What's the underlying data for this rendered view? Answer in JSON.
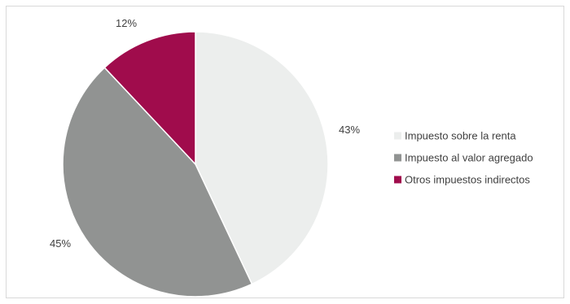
{
  "chart_data": {
    "type": "pie",
    "categories": [
      "Impuesto sobre la renta",
      "Impuesto al valor agregado",
      "Otros impuestos indirectos"
    ],
    "values": [
      43,
      45,
      12
    ],
    "labels": [
      "43%",
      "45%",
      "12%"
    ],
    "colors": [
      "#eceeed",
      "#919392",
      "#a00c4c"
    ],
    "start_angle_deg": 0,
    "direction": "clockwise",
    "legend_position": "right",
    "title": ""
  }
}
